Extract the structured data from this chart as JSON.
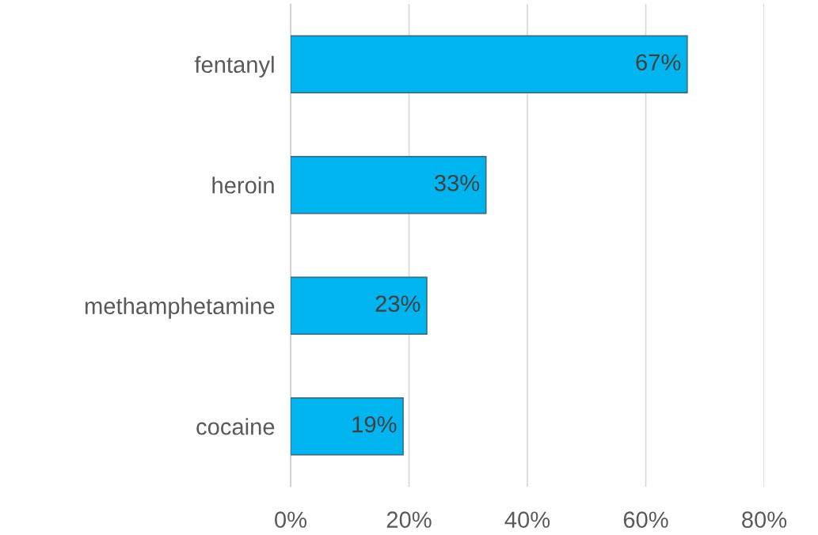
{
  "chart_data": {
    "type": "bar",
    "orientation": "horizontal",
    "categories": [
      "fentanyl",
      "heroin",
      "methamphetamine",
      "cocaine"
    ],
    "values": [
      67,
      33,
      23,
      19
    ],
    "value_labels": [
      "67%",
      "33%",
      "23%",
      "19%"
    ],
    "color": "#00b4f0",
    "xlim": [
      0,
      80
    ],
    "xticks": [
      {
        "value": 0,
        "label": "0%"
      },
      {
        "value": 20,
        "label": "20%"
      },
      {
        "value": 40,
        "label": "40%"
      },
      {
        "value": 60,
        "label": "60%"
      },
      {
        "value": 80,
        "label": "80%"
      }
    ],
    "grid": "x",
    "legend": false
  }
}
